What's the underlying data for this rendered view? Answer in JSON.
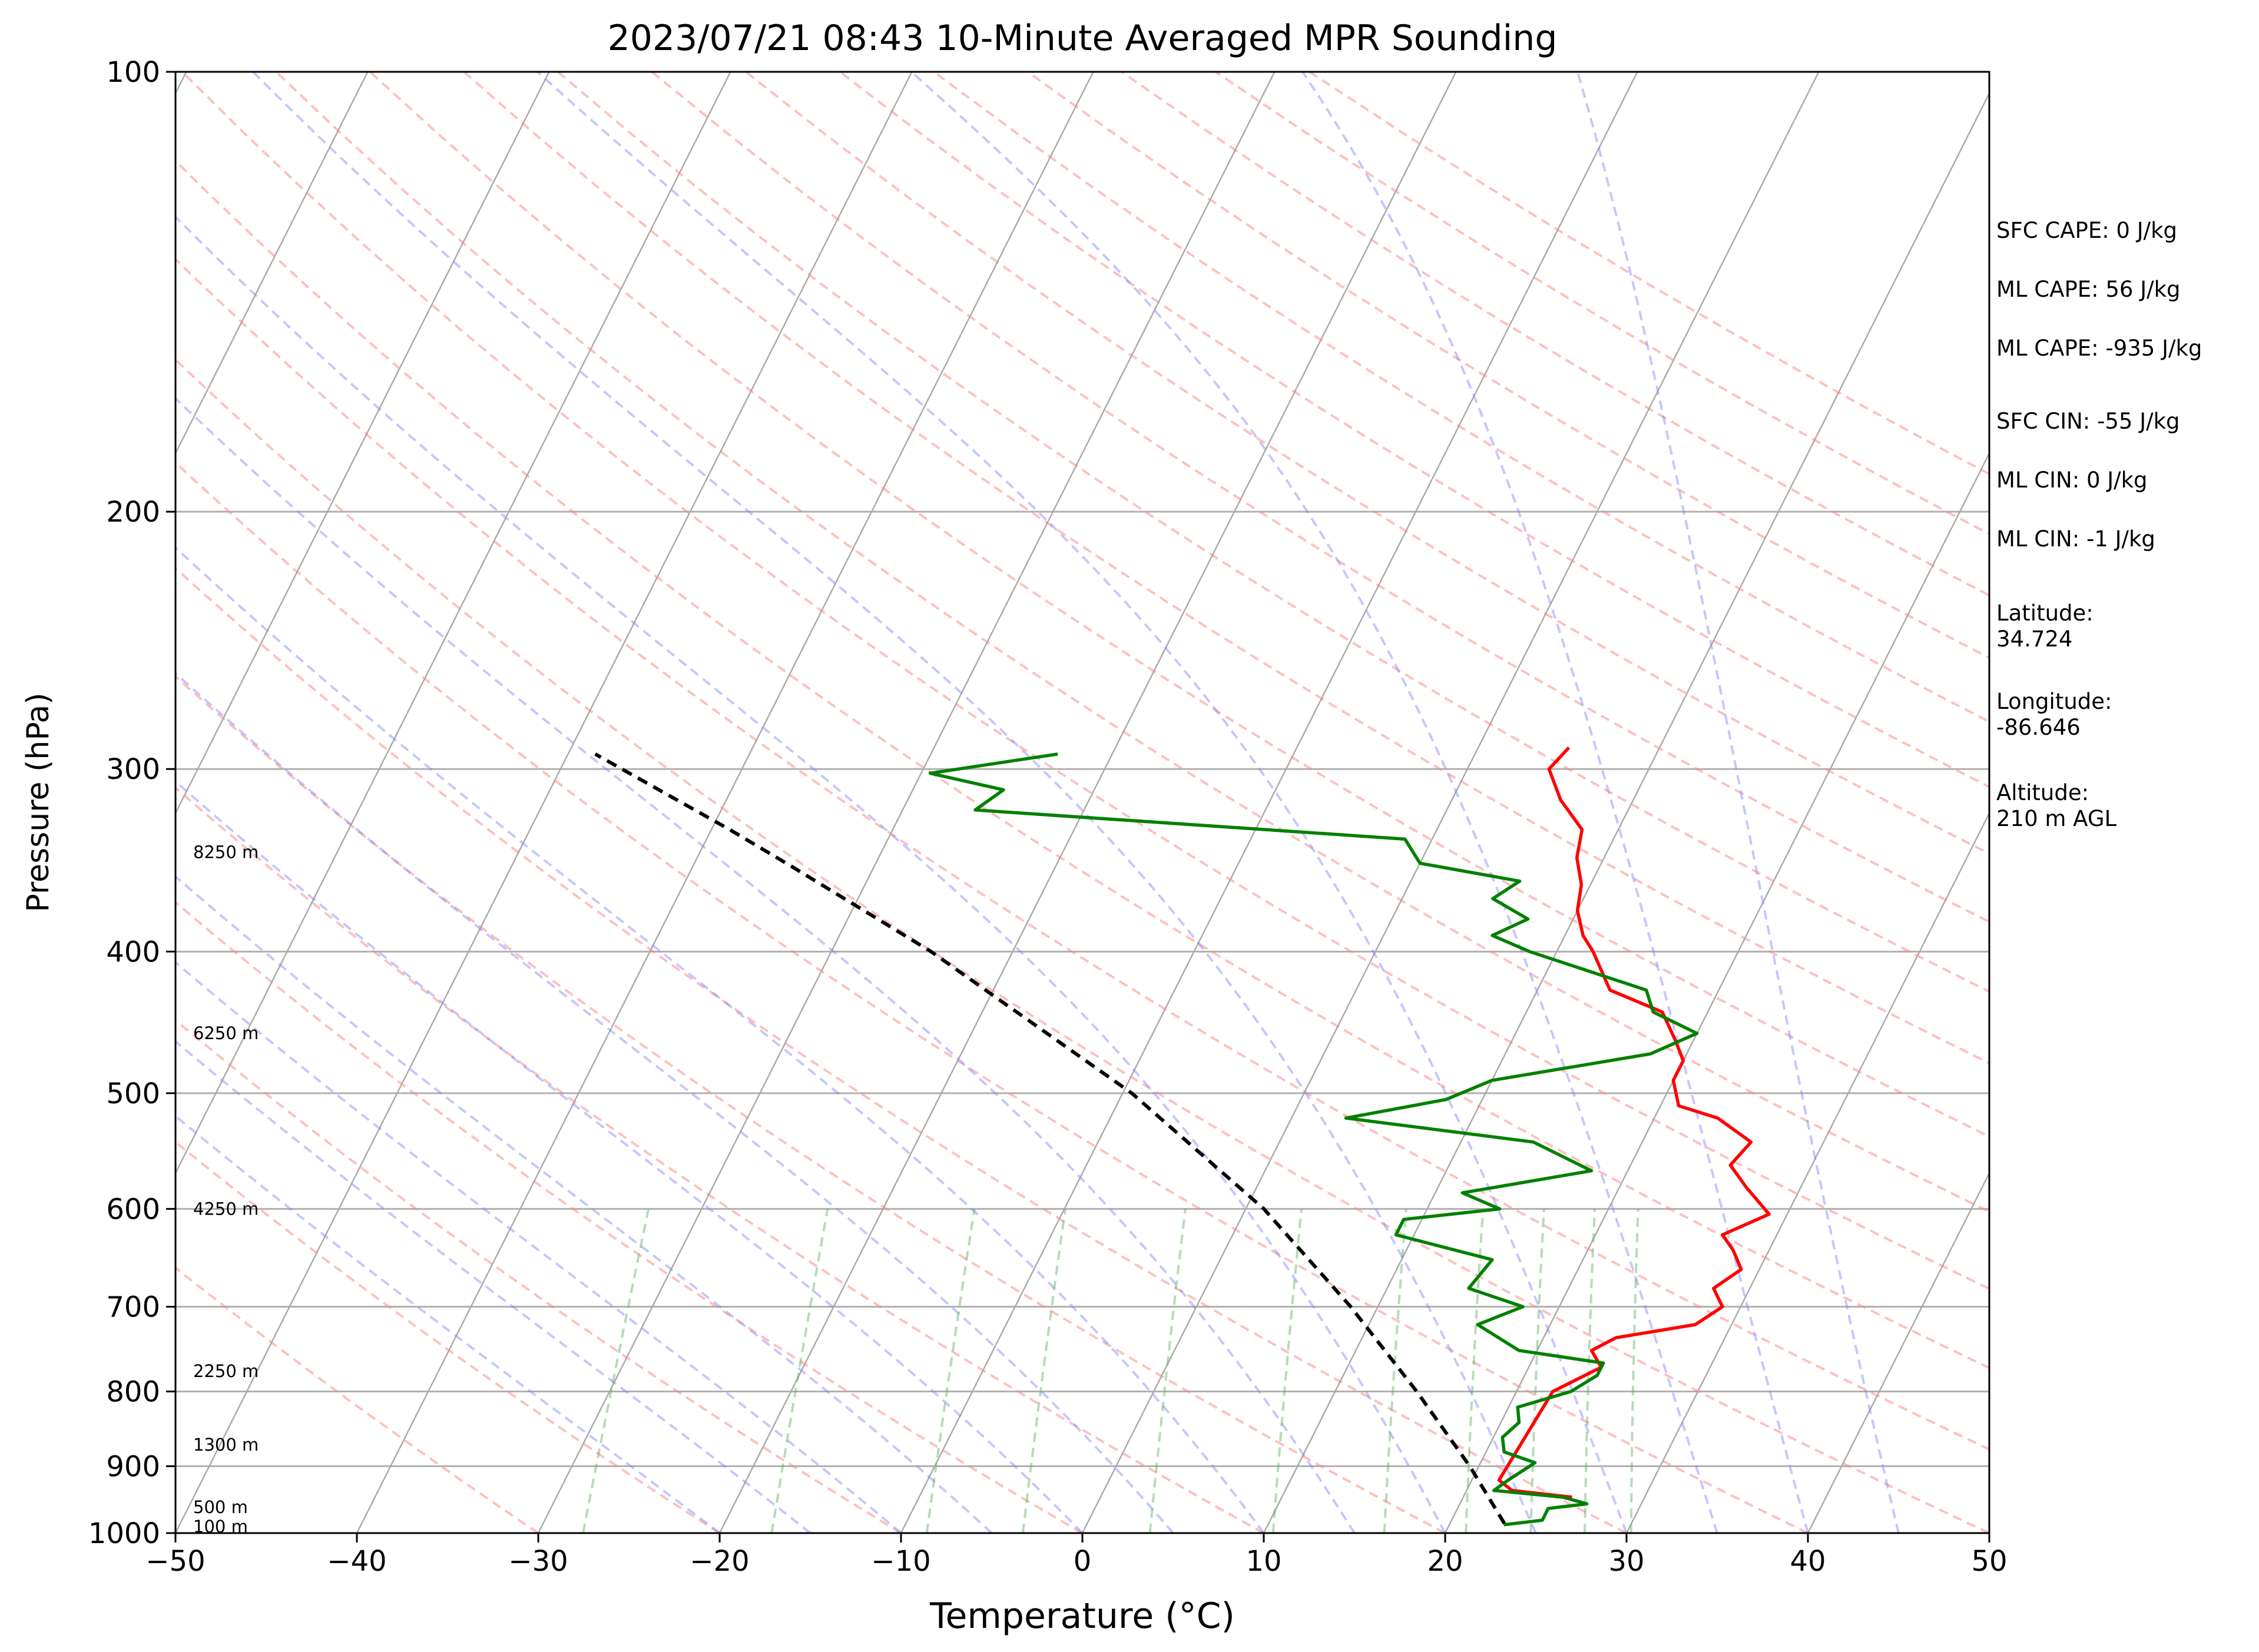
{
  "chart_data": {
    "type": "line",
    "title": "2023/07/21 08:43 10-Minute Averaged MPR Sounding",
    "xlabel": "Temperature (°C)",
    "ylabel": "Pressure (hPa)",
    "xlim": [
      -50,
      50
    ],
    "ylim": [
      1000,
      100
    ],
    "y_scale": "log",
    "grid": true,
    "xticks": [
      -50,
      -40,
      -30,
      -20,
      -10,
      0,
      10,
      20,
      30,
      40,
      50
    ],
    "xtick_labels": [
      "−50",
      "−40",
      "−30",
      "−20",
      "−10",
      "0",
      "10",
      "20",
      "30",
      "40",
      "50"
    ],
    "yticks": [
      1000,
      900,
      800,
      700,
      600,
      500,
      400,
      300,
      200,
      100
    ],
    "ytick_labels": [
      "1000",
      "900",
      "800",
      "700",
      "600",
      "500",
      "400",
      "300",
      "200",
      "100"
    ],
    "height_labels": [
      {
        "p": 990,
        "text": "100 m"
      },
      {
        "p": 960,
        "text": "500 m"
      },
      {
        "p": 870,
        "text": "1300 m"
      },
      {
        "p": 775,
        "text": "2250 m"
      },
      {
        "p": 600,
        "text": "4250 m"
      },
      {
        "p": 455,
        "text": "6250 m"
      },
      {
        "p": 342,
        "text": "8250 m"
      }
    ],
    "series": [
      {
        "color": "#ff0000",
        "points": [
          {
            "p": 945,
            "t": 26.0
          },
          {
            "p": 935,
            "t": 22.5
          },
          {
            "p": 920,
            "t": 21.5
          },
          {
            "p": 800,
            "t": 22.0
          },
          {
            "p": 770,
            "t": 24.0
          },
          {
            "p": 750,
            "t": 23.0
          },
          {
            "p": 735,
            "t": 24.0
          },
          {
            "p": 720,
            "t": 28.0
          },
          {
            "p": 700,
            "t": 29.0
          },
          {
            "p": 680,
            "t": 28.0
          },
          {
            "p": 660,
            "t": 29.0
          },
          {
            "p": 640,
            "t": 28.0
          },
          {
            "p": 625,
            "t": 27.0
          },
          {
            "p": 605,
            "t": 29.0
          },
          {
            "p": 580,
            "t": 27.0
          },
          {
            "p": 560,
            "t": 25.5
          },
          {
            "p": 540,
            "t": 26.0
          },
          {
            "p": 520,
            "t": 23.5
          },
          {
            "p": 510,
            "t": 21.0
          },
          {
            "p": 490,
            "t": 20.0
          },
          {
            "p": 475,
            "t": 20.0
          },
          {
            "p": 460,
            "t": 19.0
          },
          {
            "p": 440,
            "t": 17.5
          },
          {
            "p": 425,
            "t": 14.0
          },
          {
            "p": 400,
            "t": 12.0
          },
          {
            "p": 390,
            "t": 11.0
          },
          {
            "p": 375,
            "t": 10.0
          },
          {
            "p": 360,
            "t": 9.5
          },
          {
            "p": 345,
            "t": 8.5
          },
          {
            "p": 330,
            "t": 8.0
          },
          {
            "p": 315,
            "t": 6.0
          },
          {
            "p": 300,
            "t": 4.5
          },
          {
            "p": 290,
            "t": 5.0
          }
        ]
      },
      {
        "color": "#008000",
        "points": [
          {
            "p": 987,
            "t": 23.0
          },
          {
            "p": 980,
            "t": 25.0
          },
          {
            "p": 962,
            "t": 25.0
          },
          {
            "p": 955,
            "t": 27.0
          },
          {
            "p": 945,
            "t": 25.5
          },
          {
            "p": 935,
            "t": 21.5
          },
          {
            "p": 920,
            "t": 22.0
          },
          {
            "p": 895,
            "t": 23.0
          },
          {
            "p": 880,
            "t": 21.0
          },
          {
            "p": 860,
            "t": 20.5
          },
          {
            "p": 840,
            "t": 21.0
          },
          {
            "p": 820,
            "t": 20.5
          },
          {
            "p": 800,
            "t": 23.0
          },
          {
            "p": 780,
            "t": 24.0
          },
          {
            "p": 765,
            "t": 24.0
          },
          {
            "p": 750,
            "t": 19.0
          },
          {
            "p": 720,
            "t": 16.0
          },
          {
            "p": 700,
            "t": 18.0
          },
          {
            "p": 680,
            "t": 14.5
          },
          {
            "p": 650,
            "t": 15.0
          },
          {
            "p": 625,
            "t": 9.0
          },
          {
            "p": 610,
            "t": 9.0
          },
          {
            "p": 600,
            "t": 14.0
          },
          {
            "p": 585,
            "t": 11.5
          },
          {
            "p": 565,
            "t": 18.0
          },
          {
            "p": 540,
            "t": 14.0
          },
          {
            "p": 520,
            "t": 3.0
          },
          {
            "p": 505,
            "t": 8.0
          },
          {
            "p": 490,
            "t": 10.0
          },
          {
            "p": 470,
            "t": 18.0
          },
          {
            "p": 455,
            "t": 20.0
          },
          {
            "p": 440,
            "t": 17.0
          },
          {
            "p": 425,
            "t": 16.0
          },
          {
            "p": 400,
            "t": 8.5
          },
          {
            "p": 390,
            "t": 6.0
          },
          {
            "p": 380,
            "t": 7.5
          },
          {
            "p": 368,
            "t": 5.0
          },
          {
            "p": 358,
            "t": 6.0
          },
          {
            "p": 348,
            "t": 0.0
          },
          {
            "p": 335,
            "t": -1.5
          },
          {
            "p": 320,
            "t": -26.0
          },
          {
            "p": 310,
            "t": -25.0
          },
          {
            "p": 302,
            "t": -29.5
          },
          {
            "p": 293,
            "t": -23.0
          }
        ]
      },
      {
        "color": "#000000",
        "dashed": true,
        "points": [
          {
            "p": 985,
            "t": 23.0
          },
          {
            "p": 900,
            "t": 19.5
          },
          {
            "p": 800,
            "t": 14.5
          },
          {
            "p": 700,
            "t": 8.5
          },
          {
            "p": 600,
            "t": 1.0
          },
          {
            "p": 500,
            "t": -9.5
          },
          {
            "p": 400,
            "t": -24.5
          },
          {
            "p": 350,
            "t": -34.5
          },
          {
            "p": 330,
            "t": -39.0
          },
          {
            "p": 293,
            "t": -48.5
          }
        ]
      }
    ]
  },
  "sidebar": {
    "sfc_cape": "SFC CAPE: 0 J/kg",
    "ml_cape": "ML CAPE: 56 J/kg",
    "ml_cape2": "ML CAPE: -935 J/kg",
    "sfc_cin": "SFC CIN: -55 J/kg",
    "ml_cin": "ML CIN: 0 J/kg",
    "ml_cin2": "ML CIN: -1 J/kg",
    "latitude": "Latitude:\n34.724",
    "longitude": "Longitude:\n-86.646",
    "altitude": "Altitude:\n210 m AGL"
  }
}
